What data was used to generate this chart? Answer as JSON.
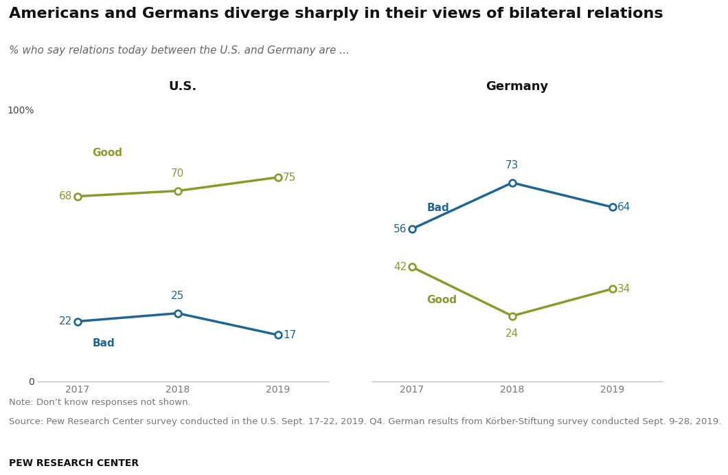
{
  "title": "Americans and Germans diverge sharply in their views of bilateral relations",
  "subtitle": "% who say relations today between the U.S. and Germany are ...",
  "note": "Note: Don’t know responses not shown.",
  "source": "Source: Pew Research Center survey conducted in the U.S. Sept. 17-22, 2019. Q4. German results from Körber-Stiftung survey conducted Sept. 9-28, 2019.",
  "credit": "PEW RESEARCH CENTER",
  "us_panel_title": "U.S.",
  "de_panel_title": "Germany",
  "years": [
    2017,
    2018,
    2019
  ],
  "us_good": [
    68,
    70,
    75
  ],
  "us_bad": [
    22,
    25,
    17
  ],
  "de_good": [
    42,
    24,
    34
  ],
  "de_bad": [
    56,
    73,
    64
  ],
  "color_good": "#8B9A2B",
  "color_bad": "#1D6696",
  "ylim": [
    0,
    100
  ],
  "background_color": "#FFFFFF",
  "label_good": "Good",
  "label_bad": "Bad",
  "title_fontsize": 16,
  "subtitle_fontsize": 11,
  "panel_title_fontsize": 13,
  "note_fontsize": 9.5,
  "credit_fontsize": 10,
  "data_label_fontsize": 11,
  "series_label_fontsize": 11,
  "axis_label_fontsize": 10,
  "line_width": 2.5,
  "marker_size": 7
}
